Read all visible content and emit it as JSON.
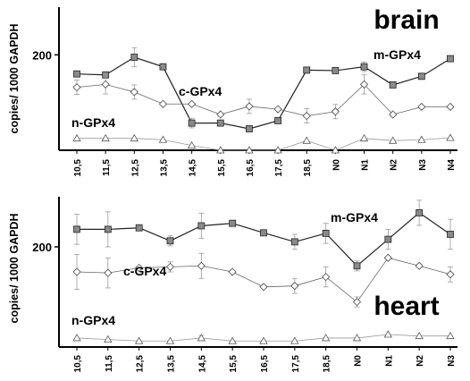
{
  "chart_data": [
    {
      "type": "line",
      "title": "brain",
      "ylabel": "copies/ 1000 GAPDH",
      "yticks": [
        200
      ],
      "ylim": [
        0,
        300
      ],
      "categories": [
        "10,5",
        "11,5",
        "12,5",
        "13,5",
        "14,5",
        "15,5",
        "16,5",
        "17,5",
        "18,5",
        "N0",
        "N1",
        "N2",
        "N3",
        "N4"
      ],
      "series": [
        {
          "name": "m-GPx4",
          "marker": "square",
          "color": "#555555",
          "values": [
            160,
            158,
            195,
            175,
            57,
            57,
            45,
            62,
            168,
            167,
            175,
            137,
            155,
            192
          ],
          "errors": [
            0,
            0,
            20,
            0,
            10,
            0,
            0,
            0,
            0,
            0,
            10,
            0,
            0,
            0
          ]
        },
        {
          "name": "c-GPx4",
          "marker": "diamond",
          "color": "#888888",
          "values": [
            132,
            138,
            122,
            97,
            97,
            75,
            92,
            86,
            72,
            81,
            138,
            75,
            91,
            91
          ],
          "errors": [
            15,
            20,
            15,
            0,
            0,
            0,
            15,
            0,
            15,
            15,
            20,
            0,
            0,
            0
          ]
        },
        {
          "name": "n-GPx4",
          "marker": "triangle",
          "color": "#aaaaaa",
          "values": [
            25,
            25,
            25,
            22,
            10,
            0,
            0,
            0,
            20,
            0,
            25,
            20,
            22,
            26
          ],
          "errors": [
            0,
            0,
            0,
            0,
            0,
            0,
            0,
            0,
            0,
            0,
            0,
            0,
            0,
            0
          ]
        }
      ]
    },
    {
      "type": "line",
      "title": "heart",
      "ylabel": "copies/ 1000 GAPDH",
      "yticks": [
        200
      ],
      "ylim": [
        0,
        300
      ],
      "categories": [
        "10,5",
        "11,5",
        "12,5",
        "13,5",
        "14,5",
        "15,5",
        "16,5",
        "17,5",
        "18,5",
        "N0",
        "N1",
        "N2",
        "N3"
      ],
      "series": [
        {
          "name": "m-GPx4",
          "marker": "square",
          "color": "#555555",
          "values": [
            235,
            235,
            238,
            212,
            242,
            247,
            228,
            210,
            227,
            162,
            215,
            268,
            225
          ],
          "errors": [
            30,
            35,
            0,
            10,
            25,
            0,
            0,
            15,
            20,
            10,
            20,
            25,
            30
          ]
        },
        {
          "name": "c-GPx4",
          "marker": "diamond",
          "color": "#888888",
          "values": [
            150,
            148,
            158,
            160,
            162,
            150,
            120,
            122,
            140,
            90,
            178,
            162,
            145
          ],
          "errors": [
            35,
            30,
            0,
            10,
            25,
            0,
            0,
            15,
            20,
            10,
            0,
            0,
            15
          ]
        },
        {
          "name": "n-GPx4",
          "marker": "triangle",
          "color": "#aaaaaa",
          "values": [
            18,
            15,
            12,
            12,
            18,
            12,
            12,
            12,
            18,
            18,
            25,
            22,
            22
          ],
          "errors": [
            0,
            0,
            0,
            0,
            5,
            0,
            0,
            0,
            0,
            0,
            0,
            0,
            0
          ]
        }
      ]
    }
  ]
}
